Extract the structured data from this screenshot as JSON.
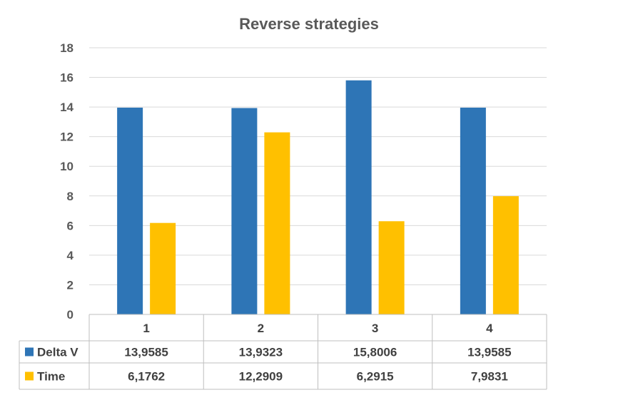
{
  "chart_data": {
    "type": "bar",
    "title": "Reverse strategies",
    "categories": [
      "1",
      "2",
      "3",
      "4"
    ],
    "series": [
      {
        "name": "Delta V",
        "color": "#2e75b6",
        "values": [
          13.9585,
          13.9323,
          15.8006,
          13.9585
        ],
        "labels": [
          "13,9585",
          "13,9323",
          "15,8006",
          "13,9585"
        ]
      },
      {
        "name": "Time",
        "color": "#ffc000",
        "values": [
          6.1762,
          12.2909,
          6.2915,
          7.9831
        ],
        "labels": [
          "6,1762",
          "12,2909",
          "6,2915",
          "7,9831"
        ]
      }
    ],
    "ylim": [
      0,
      18
    ],
    "yticks": [
      "0",
      "2",
      "4",
      "6",
      "8",
      "10",
      "12",
      "14",
      "16",
      "18"
    ],
    "grid": true,
    "legend": "data-table"
  }
}
